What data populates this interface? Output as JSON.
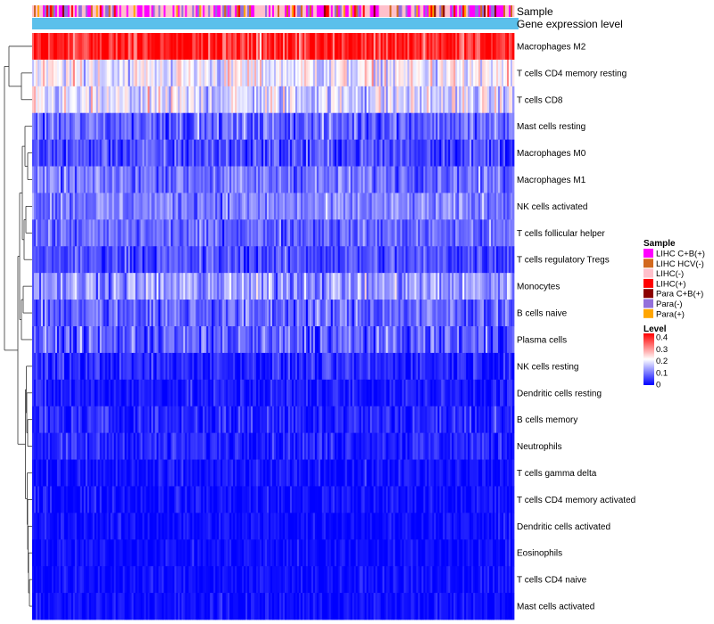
{
  "chart_data": {
    "type": "heatmap",
    "title": "",
    "annotation_tracks": [
      {
        "key": "sample",
        "label": "Sample"
      },
      {
        "key": "level",
        "label": "Gene expression level"
      }
    ],
    "rows": [
      {
        "label": "Macrophages M2",
        "mean": 0.38,
        "spread": 0.1
      },
      {
        "label": "T cells CD4 memory resting",
        "mean": 0.19,
        "spread": 0.09
      },
      {
        "label": "T cells CD8",
        "mean": 0.17,
        "spread": 0.09
      },
      {
        "label": "Mast cells resting",
        "mean": 0.08,
        "spread": 0.07
      },
      {
        "label": "Macrophages M0",
        "mean": 0.06,
        "spread": 0.07
      },
      {
        "label": "Macrophages M1",
        "mean": 0.09,
        "spread": 0.06
      },
      {
        "label": "NK cells activated",
        "mean": 0.1,
        "spread": 0.06
      },
      {
        "label": "T cells follicular helper",
        "mean": 0.08,
        "spread": 0.06
      },
      {
        "label": "T cells regulatory  Tregs",
        "mean": 0.06,
        "spread": 0.06
      },
      {
        "label": "Monocytes",
        "mean": 0.12,
        "spread": 0.08
      },
      {
        "label": "B cells naive",
        "mean": 0.08,
        "spread": 0.07
      },
      {
        "label": "Plasma cells",
        "mean": 0.07,
        "spread": 0.08
      },
      {
        "label": "NK cells resting",
        "mean": 0.03,
        "spread": 0.05
      },
      {
        "label": "Dendritic cells resting",
        "mean": 0.02,
        "spread": 0.04
      },
      {
        "label": "B cells memory",
        "mean": 0.03,
        "spread": 0.05
      },
      {
        "label": "Neutrophils",
        "mean": 0.03,
        "spread": 0.04
      },
      {
        "label": "T cells gamma delta",
        "mean": 0.01,
        "spread": 0.04
      },
      {
        "label": "T cells CD4 memory activated",
        "mean": 0.01,
        "spread": 0.04
      },
      {
        "label": "Dendritic cells activated",
        "mean": 0.01,
        "spread": 0.03
      },
      {
        "label": "Eosinophils",
        "mean": 0.01,
        "spread": 0.03
      },
      {
        "label": "T cells CD4 naive",
        "mean": 0.01,
        "spread": 0.03
      },
      {
        "label": "Mast cells activated",
        "mean": 0.01,
        "spread": 0.03
      }
    ],
    "n_samples": 271,
    "sample_legend": {
      "title": "Sample",
      "categories": [
        {
          "label": "LIHC C+B(+)",
          "color": "#FF00FF",
          "weight": 0.3
        },
        {
          "label": "LIHC HCV(-)",
          "color": "#D2691E",
          "weight": 0.05
        },
        {
          "label": "LIHC(-)",
          "color": "#FFC0CB",
          "weight": 0.35
        },
        {
          "label": "LIHC(+)",
          "color": "#FF0000",
          "weight": 0.06
        },
        {
          "label": "Para C+B(+)",
          "color": "#8B0000",
          "weight": 0.03
        },
        {
          "label": "Para(-)",
          "color": "#9370DB",
          "weight": 0.15
        },
        {
          "label": "Para(+)",
          "color": "#FFA500",
          "weight": 0.06
        }
      ]
    },
    "level_legend": {
      "title": "Level",
      "range": [
        0,
        0.4
      ],
      "ticks": [
        "0.4",
        "0.3",
        "0.2",
        "0.1",
        "0"
      ],
      "colors": [
        "#0000FF",
        "#FFFFFF",
        "#FF0000"
      ]
    },
    "level_track_color": "#5BC0EB",
    "row_dendrogram": true,
    "legend_position": "right"
  }
}
